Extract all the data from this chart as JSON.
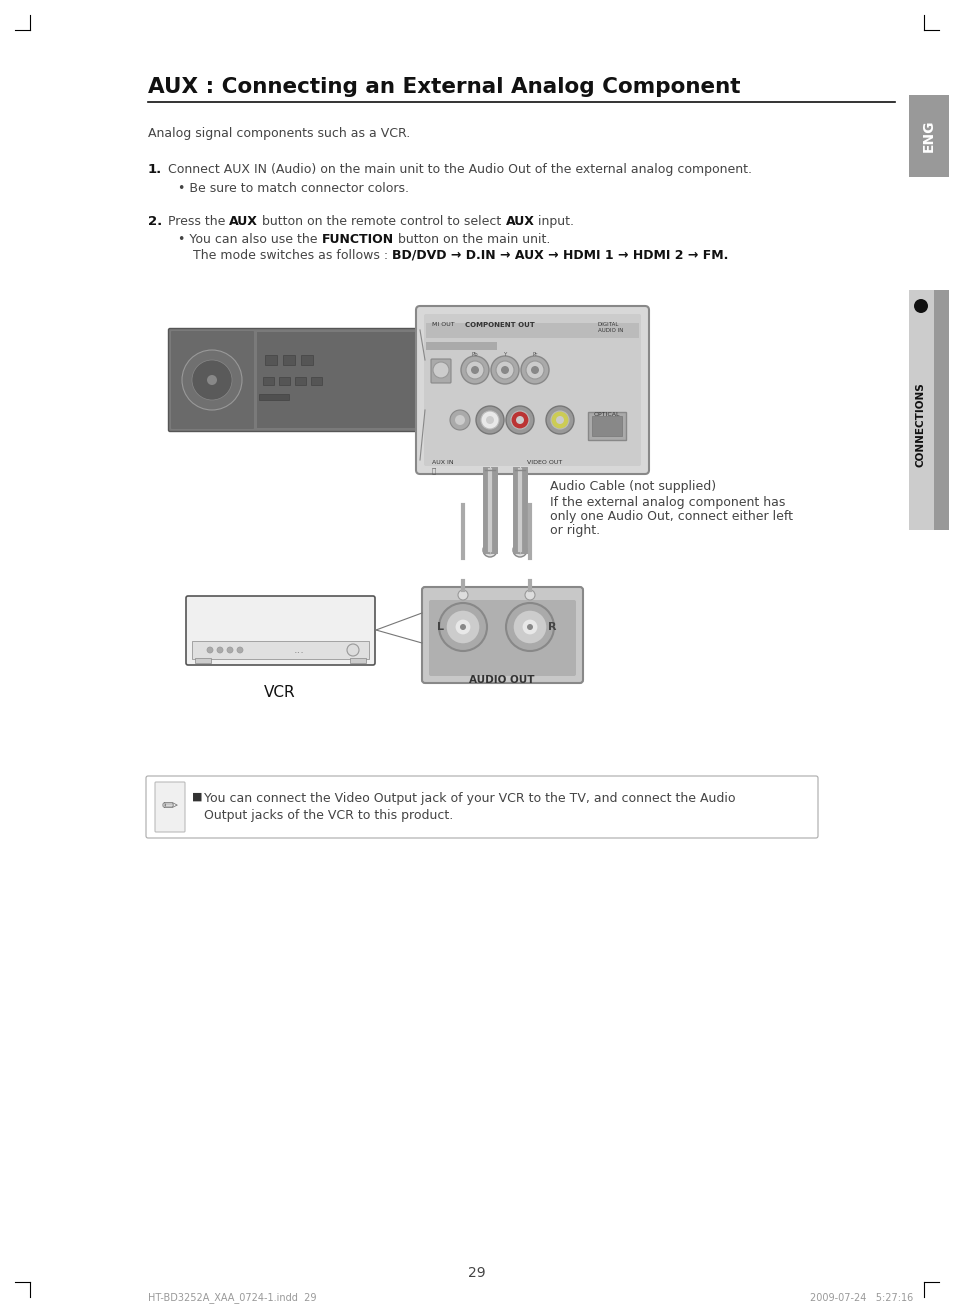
{
  "title": "AUX : Connecting an External Analog Component",
  "subtitle": "Analog signal components such as a VCR.",
  "step1_num": "1.",
  "step1_text": "Connect AUX IN (Audio) on the main unit to the Audio Out of the external analog component.",
  "step1_bullet": "• Be sure to match connector colors.",
  "step2_num": "2.",
  "step2_pre": "Press the ",
  "step2_aux1": "AUX",
  "step2_mid": " button on the remote control to select ",
  "step2_aux2": "AUX",
  "step2_post": " input.",
  "step2_bullet1_pre": "• You can also use the ",
  "step2_bullet1_bold": "FUNCTION",
  "step2_bullet1_post": " button on the main unit.",
  "step2_bullet2_pre": "The mode switches as follows : ",
  "step2_bullet2_bold": "BD/DVD → D.IN → AUX → HDMI 1 → HDMI 2 → FM.",
  "cable_note1": "Audio Cable (not supplied)",
  "cable_note2": "If the external analog component has",
  "cable_note3": "only one Audio Out, connect either left",
  "cable_note4": "or right.",
  "vcr_label": "VCR",
  "audio_out_label": "AUDIO OUT",
  "note_bullet": "■",
  "note_text1": "You can connect the Video Output jack of your VCR to the TV, and connect the Audio",
  "note_text2": "Output jacks of the VCR to this product.",
  "eng_label": "ENG",
  "connections_label": "CONNECTIONS",
  "page_number": "29",
  "footer_left": "HT-BD3252A_XAA_0724-1.indd  29",
  "footer_right": "2009-07-24   5:27:16",
  "bg_color": "#ffffff",
  "sidebar_dark": "#999999",
  "sidebar_light": "#cccccc",
  "text_dark": "#111111",
  "text_gray": "#444444",
  "line_color": "#000000",
  "device_fill": "#888888",
  "panel_fill": "#aaaaaa",
  "panel_bg": "#d0d0d0",
  "vcr_stroke": "#555555",
  "ao_fill": "#b0b0b0"
}
